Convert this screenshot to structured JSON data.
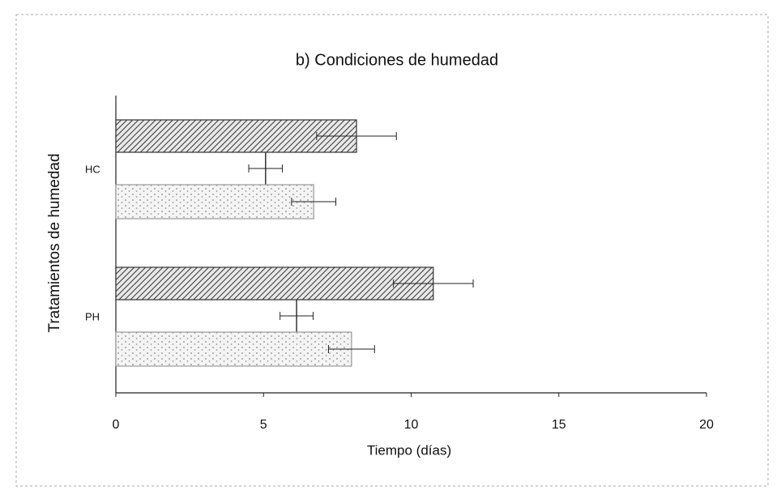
{
  "chart_data": {
    "type": "bar",
    "orientation": "horizontal",
    "title": "b) Condiciones de humedad",
    "xlabel": "Tiempo (días)",
    "ylabel": "Tratamientos de humedad",
    "categories": [
      "HC",
      "PH"
    ],
    "series": [
      {
        "color": "#333333",
        "pattern": "hatch",
        "values": [
          8.15,
          10.75
        ],
        "errors": [
          1.35,
          1.35
        ]
      },
      {
        "color": "#333333",
        "pattern": "line",
        "values": [
          5.07,
          6.12
        ],
        "errors": [
          0.57,
          0.56
        ]
      },
      {
        "color": "#999999",
        "pattern": "dots",
        "values": [
          6.7,
          7.98
        ],
        "errors": [
          0.75,
          0.78
        ]
      }
    ],
    "xlim": [
      0,
      20
    ],
    "xticks": [
      0,
      5,
      10,
      15,
      20
    ],
    "grid": false
  }
}
